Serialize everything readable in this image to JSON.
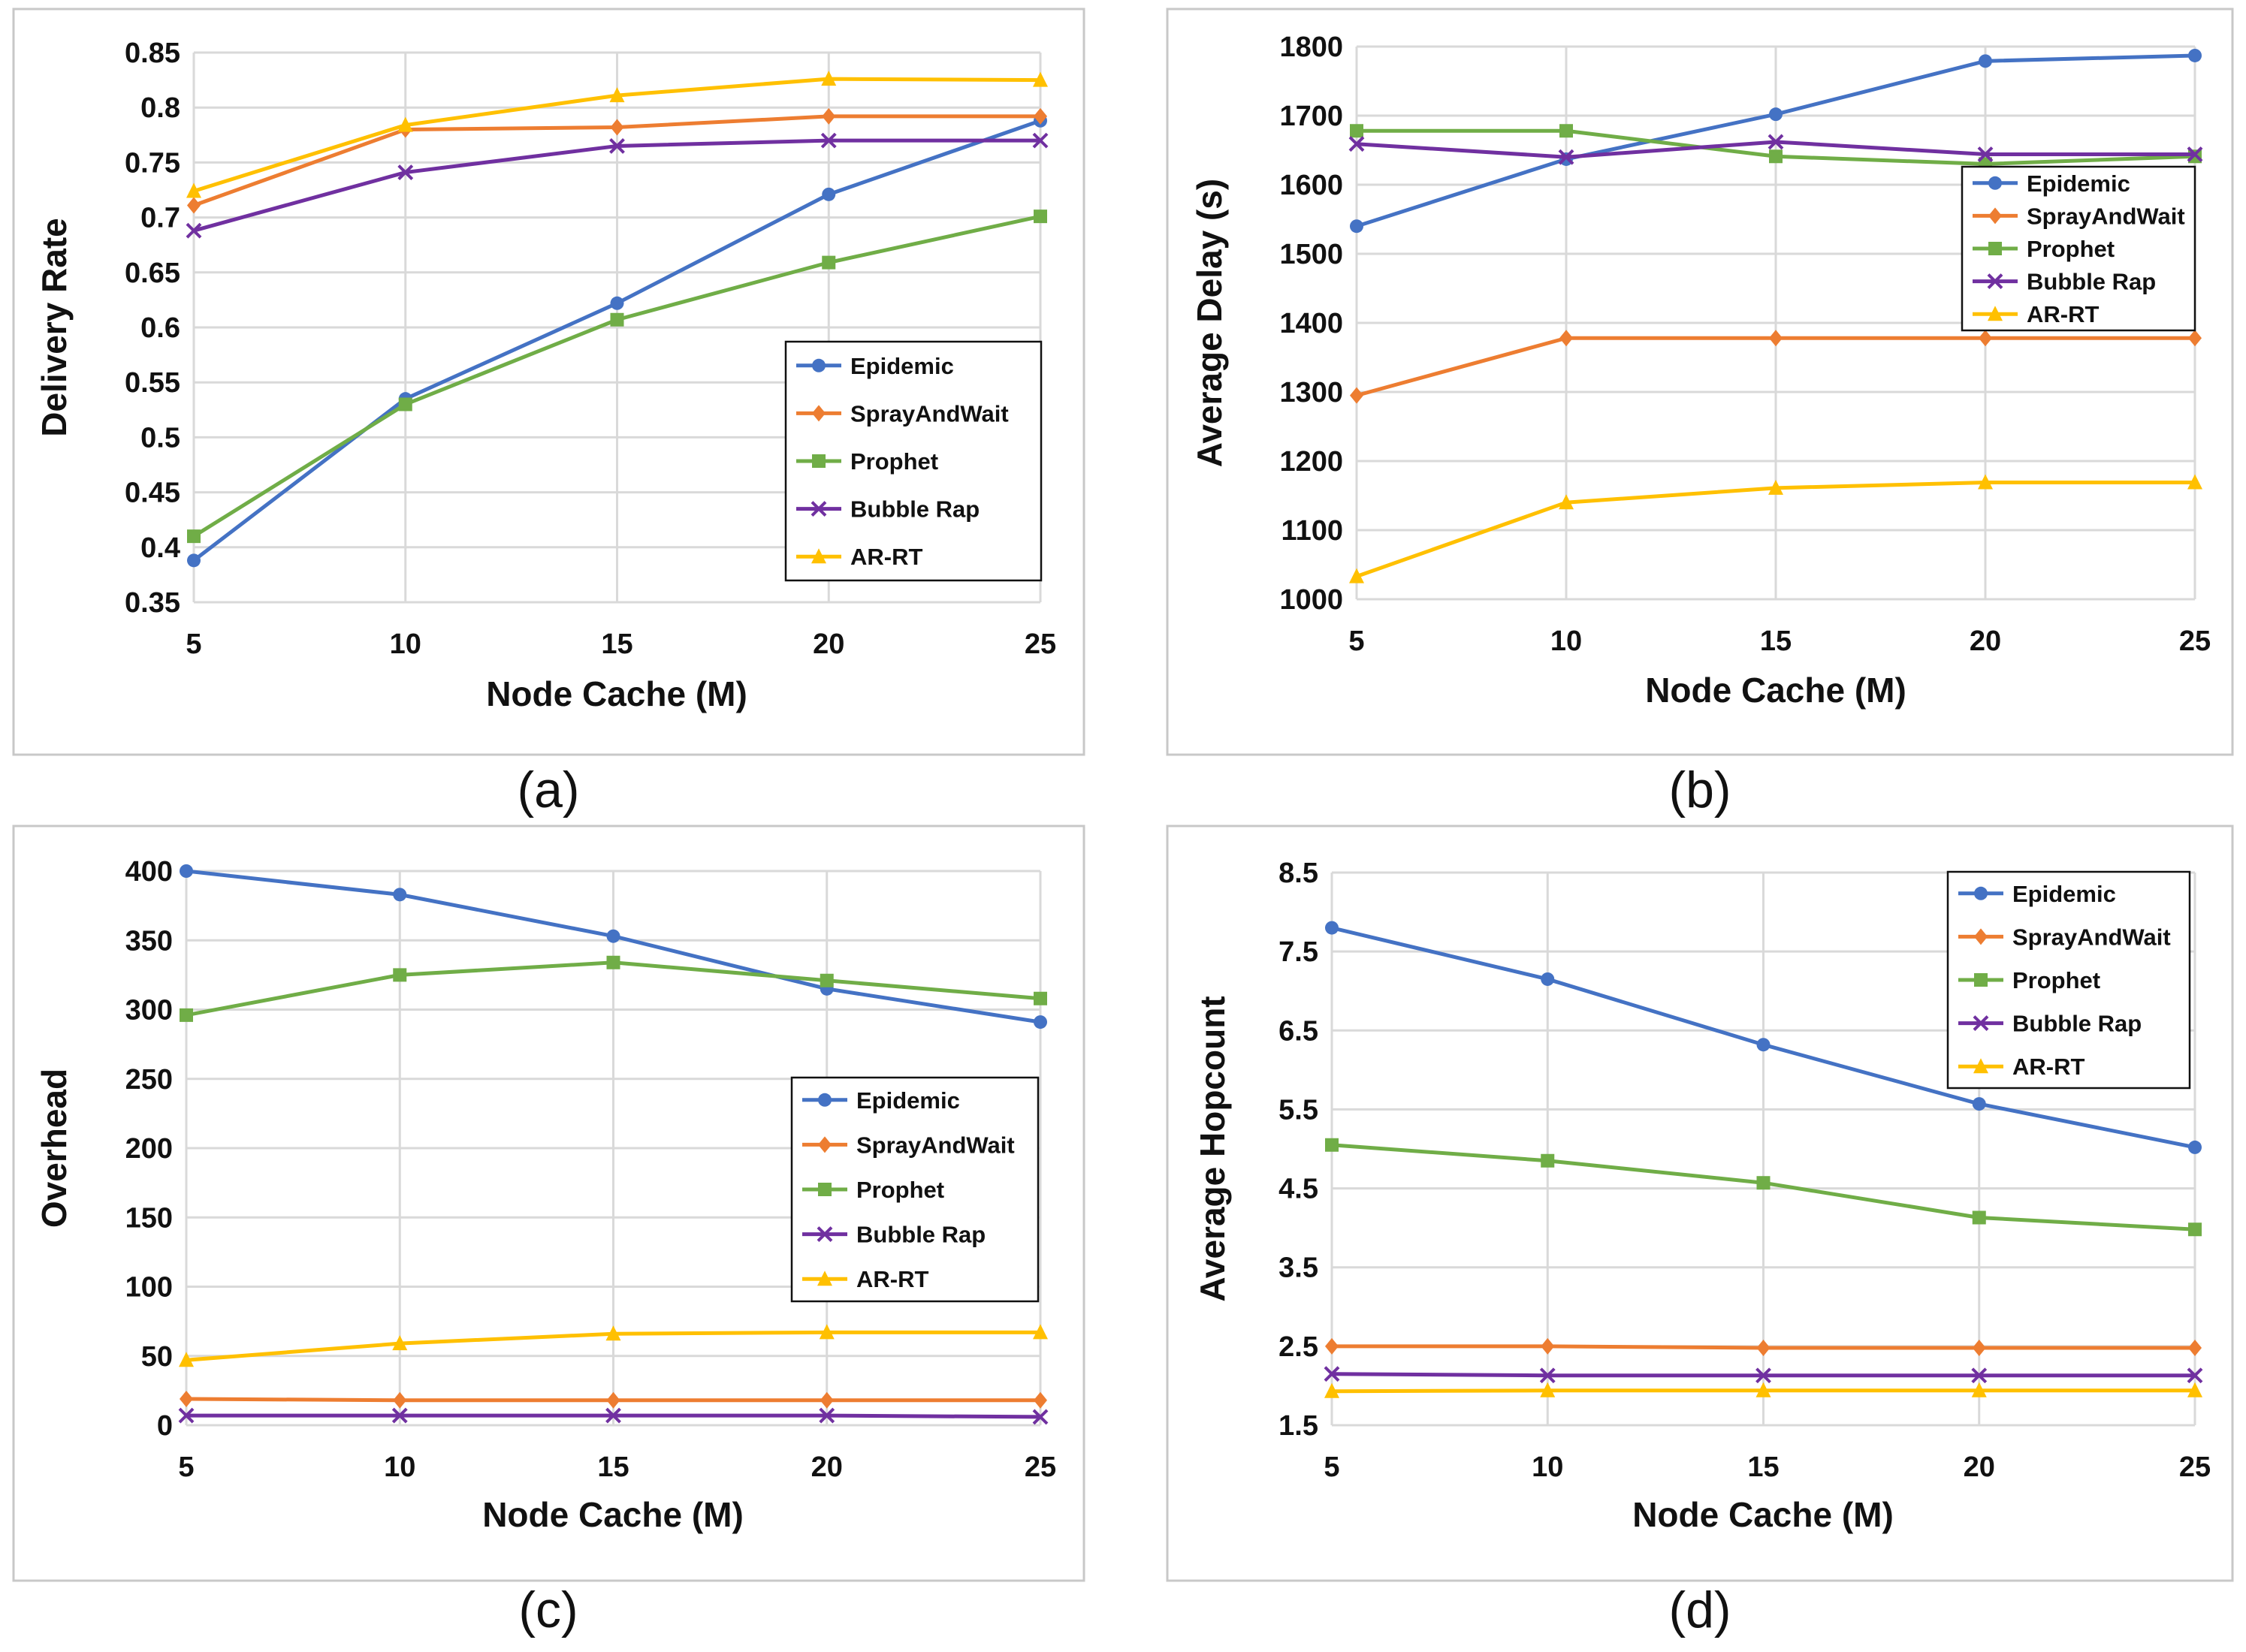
{
  "colors": {
    "Epidemic": "#4472C4",
    "SprayAndWait": "#ED7D31",
    "Prophet": "#70AD47",
    "Bubble Rap": "#7030A0",
    "AR-RT": "#FFC000"
  },
  "markers": {
    "Epidemic": "circle",
    "SprayAndWait": "diamond",
    "Prophet": "square",
    "Bubble Rap": "cross",
    "AR-RT": "triangle"
  },
  "chart_data": [
    {
      "type": "line",
      "caption": "(a)",
      "title": "",
      "xlabel": "Node Cache (M)",
      "ylabel": "Delivery Rate",
      "x": [
        5,
        10,
        15,
        20,
        25
      ],
      "xticks": [
        "5",
        "10",
        "15",
        "20",
        "25"
      ],
      "ylim": [
        0.35,
        0.85
      ],
      "yticks": [
        "0.35",
        "0.4",
        "0.45",
        "0.5",
        "0.55",
        "0.6",
        "0.65",
        "0.7",
        "0.75",
        "0.8",
        "0.85"
      ],
      "grid": true,
      "legend": "right-middle",
      "series": [
        {
          "name": "Epidemic",
          "values": [
            0.388,
            0.535,
            0.622,
            0.721,
            0.788
          ]
        },
        {
          "name": "SprayAndWait",
          "values": [
            0.711,
            0.78,
            0.782,
            0.792,
            0.792
          ]
        },
        {
          "name": "Prophet",
          "values": [
            0.41,
            0.53,
            0.607,
            0.659,
            0.701
          ]
        },
        {
          "name": "Bubble Rap",
          "values": [
            0.688,
            0.741,
            0.765,
            0.77,
            0.77
          ]
        },
        {
          "name": "AR-RT",
          "values": [
            0.724,
            0.784,
            0.811,
            0.826,
            0.825
          ]
        }
      ]
    },
    {
      "type": "line",
      "caption": "(b)",
      "title": "",
      "xlabel": "Node Cache (M)",
      "ylabel": "Average Delay (s)",
      "x": [
        5,
        10,
        15,
        20,
        25
      ],
      "xticks": [
        "5",
        "10",
        "15",
        "20",
        "25"
      ],
      "ylim": [
        1000,
        1800
      ],
      "yticks": [
        "1000",
        "1100",
        "1200",
        "1300",
        "1400",
        "1500",
        "1600",
        "1700",
        "1800"
      ],
      "grid": true,
      "legend": "top-right",
      "series": [
        {
          "name": "Epidemic",
          "values": [
            1540,
            1637,
            1702,
            1779,
            1787
          ]
        },
        {
          "name": "SprayAndWait",
          "values": [
            1295,
            1378,
            1378,
            1378,
            1378
          ]
        },
        {
          "name": "Prophet",
          "values": [
            1678,
            1678,
            1641,
            1630,
            1641
          ]
        },
        {
          "name": "Bubble Rap",
          "values": [
            1659,
            1640,
            1662,
            1644,
            1644
          ]
        },
        {
          "name": "AR-RT",
          "values": [
            1033,
            1140,
            1161,
            1169,
            1169
          ]
        }
      ]
    },
    {
      "type": "line",
      "caption": "(c)",
      "title": "",
      "xlabel": "Node Cache (M)",
      "ylabel": "Overhead",
      "x": [
        5,
        10,
        15,
        20,
        25
      ],
      "xticks": [
        "5",
        "10",
        "15",
        "20",
        "25"
      ],
      "ylim": [
        0,
        400
      ],
      "yticks": [
        "0",
        "50",
        "100",
        "150",
        "200",
        "250",
        "300",
        "350",
        "400"
      ],
      "grid": true,
      "legend": "right-middle",
      "series": [
        {
          "name": "Epidemic",
          "values": [
            400,
            383,
            353,
            315,
            291
          ]
        },
        {
          "name": "SprayAndWait",
          "values": [
            19,
            18,
            18,
            18,
            18
          ]
        },
        {
          "name": "Prophet",
          "values": [
            296,
            325,
            334,
            321,
            308
          ]
        },
        {
          "name": "Bubble Rap",
          "values": [
            7,
            7,
            7,
            7,
            6
          ]
        },
        {
          "name": "AR-RT",
          "values": [
            47,
            59,
            66,
            67,
            67
          ]
        }
      ]
    },
    {
      "type": "line",
      "caption": "(d)",
      "title": "",
      "xlabel": "Node Cache (M)",
      "ylabel": "Average Hopcount",
      "x": [
        5,
        10,
        15,
        20,
        25
      ],
      "xticks": [
        "5",
        "10",
        "15",
        "20",
        "25"
      ],
      "ylim": [
        1.5,
        8.5
      ],
      "yticks": [
        "1.5",
        "2.5",
        "3.5",
        "4.5",
        "5.5",
        "6.5",
        "7.5",
        "8.5"
      ],
      "grid": true,
      "legend": "top-right",
      "series": [
        {
          "name": "Epidemic",
          "values": [
            7.8,
            7.15,
            6.32,
            5.57,
            5.02
          ]
        },
        {
          "name": "SprayAndWait",
          "values": [
            2.5,
            2.5,
            2.48,
            2.48,
            2.48
          ]
        },
        {
          "name": "Prophet",
          "values": [
            5.05,
            4.85,
            4.57,
            4.13,
            3.98
          ]
        },
        {
          "name": "Bubble Rap",
          "values": [
            2.15,
            2.13,
            2.13,
            2.13,
            2.13
          ]
        },
        {
          "name": "AR-RT",
          "values": [
            1.93,
            1.94,
            1.94,
            1.94,
            1.94
          ]
        }
      ]
    }
  ]
}
